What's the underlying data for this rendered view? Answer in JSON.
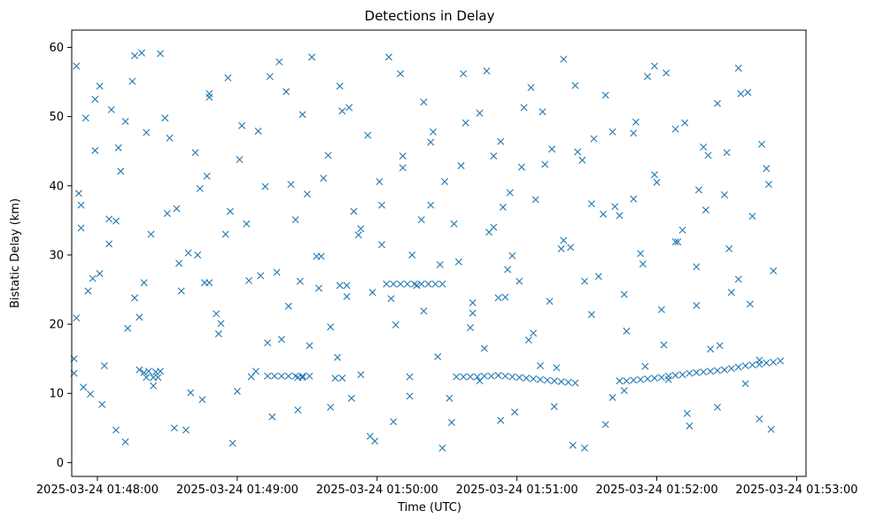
{
  "chart_data": {
    "type": "scatter",
    "title": "Detections in Delay",
    "xlabel": "Time (UTC)",
    "ylabel": "Bistatic Delay (km)",
    "marker": "x",
    "color": "#1f77b4",
    "grid": false,
    "xlim": [
      "2025-03-24 01:47:49",
      "2025-03-24 01:53:04"
    ],
    "ylim": [
      -2.0,
      62.5
    ],
    "x_ticks": [
      "2025-03-24 01:48:00",
      "2025-03-24 01:49:00",
      "2025-03-24 01:50:00",
      "2025-03-24 01:51:00",
      "2025-03-24 01:52:00",
      "2025-03-24 01:53:00"
    ],
    "y_ticks": [
      0,
      10,
      20,
      30,
      40,
      50,
      60
    ],
    "series": [
      {
        "x": [
          "01:47:50",
          "01:47:51",
          "01:47:52",
          "01:47:53",
          "01:47:55",
          "01:47:57",
          "01:47:59",
          "01:48:01",
          "01:48:03",
          "01:48:06",
          "01:48:08",
          "01:48:10",
          "01:48:12",
          "01:48:15",
          "01:48:18",
          "01:48:21",
          "01:48:24",
          "01:48:27",
          "01:48:30",
          "01:48:33",
          "01:48:36",
          "01:48:39",
          "01:48:42",
          "01:48:45",
          "01:48:48",
          "01:48:52",
          "01:48:55",
          "01:48:58",
          "01:49:02",
          "01:49:05",
          "01:49:08",
          "01:49:12",
          "01:49:15",
          "01:49:18",
          "01:49:22",
          "01:49:25",
          "01:49:28",
          "01:49:31",
          "01:49:34",
          "01:49:37",
          "01:49:40",
          "01:49:44",
          "01:49:47",
          "01:49:50",
          "01:49:53",
          "01:49:56",
          "01:49:59",
          "01:50:02",
          "01:50:05",
          "01:50:08",
          "01:50:11",
          "01:50:14",
          "01:50:17",
          "01:50:20",
          "01:50:23",
          "01:50:26",
          "01:50:29",
          "01:50:32",
          "01:50:35",
          "01:50:38",
          "01:50:41",
          "01:50:44",
          "01:50:47",
          "01:50:50",
          "01:50:53",
          "01:50:56",
          "01:50:59",
          "01:51:02",
          "01:51:05",
          "01:51:08",
          "01:51:11",
          "01:51:14",
          "01:51:17",
          "01:51:20",
          "01:51:23",
          "01:51:26",
          "01:51:29",
          "01:51:32",
          "01:51:35",
          "01:51:38",
          "01:51:41",
          "01:51:44",
          "01:51:47",
          "01:51:50",
          "01:51:53",
          "01:51:56",
          "01:51:59",
          "01:52:02",
          "01:52:05",
          "01:52:08",
          "01:52:11",
          "01:52:14",
          "01:52:17",
          "01:52:20",
          "01:52:23",
          "01:52:26",
          "01:52:29",
          "01:52:32",
          "01:52:35",
          "01:52:38",
          "01:52:41",
          "01:52:44",
          "01:52:47",
          "01:52:50",
          "01:47:50",
          "01:47:53",
          "01:47:56",
          "01:47:59",
          "01:48:02",
          "01:48:05",
          "01:48:09",
          "01:48:13",
          "01:48:16",
          "01:48:20",
          "01:48:25",
          "01:48:29",
          "01:48:34",
          "01:48:38",
          "01:48:43",
          "01:48:47",
          "01:48:51",
          "01:48:56",
          "01:49:00",
          "01:49:04",
          "01:49:09",
          "01:49:13",
          "01:49:17",
          "01:49:21",
          "01:49:26",
          "01:49:30",
          "01:49:35",
          "01:49:39",
          "01:49:43",
          "01:49:48",
          "01:49:52",
          "01:49:57",
          "01:50:01",
          "01:50:06",
          "01:50:10",
          "01:50:14",
          "01:50:19",
          "01:50:23",
          "01:50:27",
          "01:50:31",
          "01:50:36",
          "01:50:40",
          "01:50:44",
          "01:50:48",
          "01:50:53",
          "01:50:57",
          "01:51:01",
          "01:51:06",
          "01:51:10",
          "01:51:15",
          "01:51:19",
          "01:51:24",
          "01:51:28",
          "01:51:32",
          "01:51:37",
          "01:51:41",
          "01:51:46",
          "01:51:50",
          "01:51:54",
          "01:51:59",
          "01:52:03",
          "01:52:08",
          "01:52:12",
          "01:52:17",
          "01:52:21",
          "01:52:26",
          "01:52:30",
          "01:52:35",
          "01:52:39",
          "01:52:44",
          "01:52:48",
          "01:47:51",
          "01:47:54",
          "01:47:58",
          "01:48:01",
          "01:48:05",
          "01:48:08",
          "01:48:12",
          "01:48:16",
          "01:48:19",
          "01:48:23",
          "01:48:27",
          "01:48:31",
          "01:48:35",
          "01:48:40",
          "01:48:44",
          "01:48:48",
          "01:48:53",
          "01:48:57",
          "01:49:01",
          "01:49:06",
          "01:49:10",
          "01:49:14",
          "01:49:19",
          "01:49:23",
          "01:49:27",
          "01:49:32",
          "01:49:36",
          "01:49:40",
          "01:49:45",
          "01:49:49",
          "01:49:53",
          "01:49:58",
          "01:50:02",
          "01:50:07",
          "01:50:11",
          "01:50:15",
          "01:50:20",
          "01:50:24",
          "01:50:28",
          "01:50:33",
          "01:50:37",
          "01:50:41",
          "01:50:46",
          "01:50:50",
          "01:50:54",
          "01:50:58",
          "01:51:03",
          "01:51:07",
          "01:51:12",
          "01:51:16",
          "01:51:20",
          "01:51:25",
          "01:51:29",
          "01:51:33",
          "01:51:38",
          "01:51:42",
          "01:51:46",
          "01:51:51",
          "01:51:55",
          "01:52:00",
          "01:52:04",
          "01:52:09",
          "01:52:13",
          "01:52:18",
          "01:52:22",
          "01:52:27",
          "01:52:31",
          "01:52:36",
          "01:52:40",
          "01:52:45",
          "01:52:49",
          "01:50:04",
          "01:50:07",
          "01:50:10",
          "01:50:13",
          "01:50:16",
          "01:50:19",
          "01:50:22",
          "01:50:25",
          "01:50:28",
          "01:49:13",
          "01:49:16",
          "01:49:19",
          "01:49:22",
          "01:49:25",
          "01:49:28",
          "01:48:21",
          "01:48:24",
          "01:48:26",
          "01:48:46",
          "01:48:48",
          "01:49:44",
          "01:49:47",
          "01:50:34",
          "01:50:37",
          "01:50:40",
          "01:50:43",
          "01:50:46",
          "01:50:49",
          "01:50:52",
          "01:50:55",
          "01:50:58",
          "01:51:01",
          "01:51:04",
          "01:51:07",
          "01:51:10",
          "01:51:13",
          "01:51:16",
          "01:51:19",
          "01:51:22",
          "01:51:25",
          "01:51:44",
          "01:51:47",
          "01:51:50",
          "01:51:53",
          "01:51:56",
          "01:51:59",
          "01:52:02",
          "01:52:05",
          "01:52:08",
          "01:52:11",
          "01:52:14",
          "01:52:17",
          "01:52:20",
          "01:52:23",
          "01:52:26",
          "01:52:29",
          "01:52:32",
          "01:52:35",
          "01:52:38",
          "01:52:41",
          "01:52:44",
          "01:52:47",
          "01:52:50",
          "01:52:53",
          "01:48:18",
          "01:48:20",
          "01:48:22",
          "01:49:26",
          "01:49:28",
          "01:49:31",
          "01:49:42",
          "01:49:45",
          "01:50:52",
          "01:50:55"
        ],
        "y": [
          15.0,
          57.3,
          38.9,
          33.9,
          49.8,
          9.9,
          45.1,
          27.3,
          14.0,
          51.0,
          34.9,
          42.1,
          3.0,
          55.1,
          21.0,
          47.7,
          11.1,
          59.1,
          36.0,
          5.0,
          24.8,
          30.3,
          44.8,
          9.1,
          53.3,
          18.6,
          33.0,
          2.8,
          48.7,
          26.3,
          13.2,
          39.9,
          6.6,
          57.9,
          22.6,
          35.1,
          50.3,
          16.9,
          29.8,
          41.1,
          8.0,
          54.4,
          24.0,
          36.3,
          12.7,
          47.3,
          3.1,
          31.5,
          58.6,
          19.9,
          44.3,
          9.6,
          25.6,
          52.1,
          37.2,
          15.3,
          40.6,
          5.8,
          29.0,
          49.1,
          21.6,
          11.8,
          56.6,
          34.0,
          46.4,
          27.9,
          7.3,
          42.7,
          17.7,
          38.0,
          50.7,
          23.3,
          13.7,
          58.3,
          31.1,
          44.9,
          2.1,
          37.4,
          26.9,
          53.1,
          9.4,
          35.7,
          19.0,
          47.6,
          30.2,
          55.8,
          41.6,
          22.1,
          12.0,
          48.2,
          33.6,
          5.3,
          28.3,
          45.6,
          16.4,
          51.9,
          38.7,
          24.6,
          57.0,
          11.4,
          35.6,
          6.3,
          42.5,
          27.7,
          12.9,
          37.2,
          24.8,
          52.5,
          8.4,
          31.6,
          45.5,
          19.4,
          58.8,
          26.0,
          13.1,
          49.8,
          36.7,
          4.7,
          30.0,
          41.4,
          21.5,
          55.6,
          10.3,
          34.5,
          47.9,
          17.3,
          27.5,
          53.6,
          7.6,
          38.8,
          25.2,
          44.4,
          15.2,
          51.3,
          32.9,
          3.8,
          40.6,
          23.7,
          56.2,
          12.4,
          35.1,
          46.3,
          28.6,
          9.3,
          42.9,
          19.5,
          50.5,
          33.3,
          6.1,
          39.0,
          26.2,
          54.2,
          14.0,
          45.3,
          30.9,
          2.5,
          43.7,
          21.4,
          35.9,
          47.8,
          10.4,
          38.1,
          28.7,
          57.3,
          17.0,
          31.9,
          49.1,
          22.7,
          36.5,
          8.0,
          44.8,
          26.5,
          53.5,
          14.8,
          40.2,
          20.9,
          10.9,
          26.6,
          54.4,
          35.2,
          4.7,
          49.3,
          23.8,
          59.2,
          33.0,
          13.2,
          46.9,
          28.8,
          10.1,
          39.6,
          52.8,
          20.1,
          36.3,
          43.8,
          12.4,
          27.0,
          55.8,
          17.8,
          40.2,
          26.2,
          58.6,
          29.8,
          19.6,
          50.8,
          9.3,
          33.8,
          24.6,
          37.2,
          5.9,
          42.6,
          30.0,
          21.9,
          47.8,
          2.1,
          34.5,
          56.2,
          23.1,
          16.5,
          44.3,
          36.9,
          29.9,
          51.3,
          18.7,
          43.1,
          8.1,
          32.1,
          54.5,
          26.2,
          46.8,
          5.5,
          37.0,
          24.3,
          49.2,
          13.9,
          40.5,
          56.3,
          31.9,
          7.1,
          39.4,
          44.4,
          16.9,
          30.9,
          53.3,
          22.9,
          46.0,
          4.8,
          25.8,
          25.8,
          25.8,
          25.8,
          25.8,
          25.8,
          25.8,
          25.8,
          25.8,
          12.5,
          12.5,
          12.5,
          12.5,
          12.5,
          12.5,
          12.3,
          12.3,
          12.3,
          26.0,
          26.0,
          25.6,
          25.6,
          12.4,
          12.4,
          12.4,
          12.4,
          12.5,
          12.5,
          12.6,
          12.5,
          12.4,
          12.3,
          12.2,
          12.1,
          12.0,
          11.9,
          11.8,
          11.7,
          11.6,
          11.5,
          11.8,
          11.8,
          11.9,
          12.0,
          12.1,
          12.2,
          12.3,
          12.5,
          12.6,
          12.7,
          12.9,
          13.0,
          13.1,
          13.2,
          13.3,
          13.4,
          13.6,
          13.8,
          14.0,
          14.1,
          14.2,
          14.4,
          14.5,
          14.7,
          13.4,
          13.0,
          13.2,
          12.3,
          12.3,
          12.5,
          12.2,
          12.2,
          23.8,
          23.9
        ],
        "name": ""
      }
    ]
  }
}
